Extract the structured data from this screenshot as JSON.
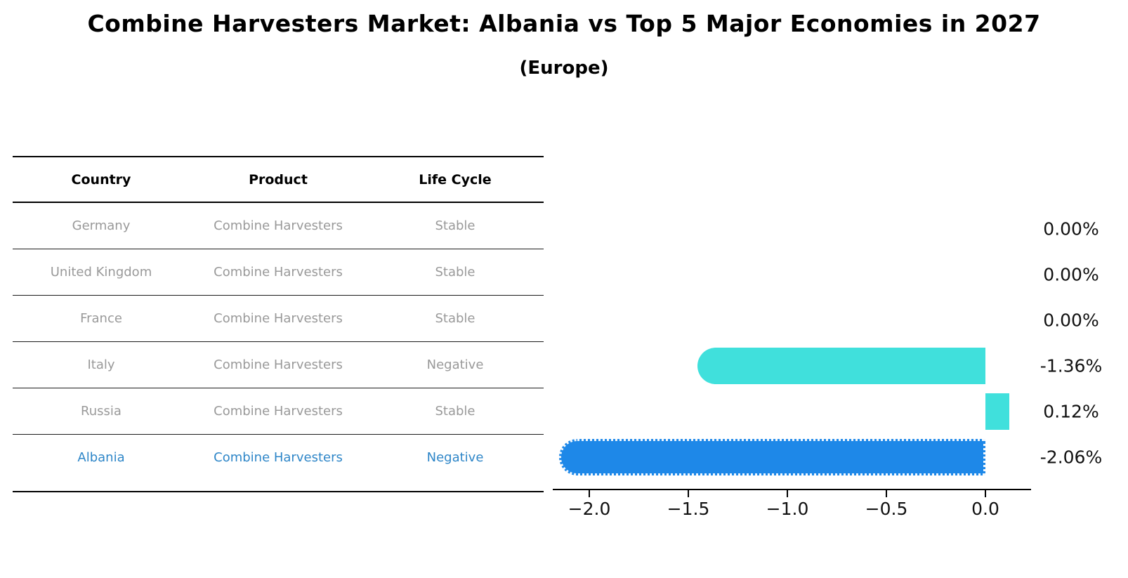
{
  "title": "Combine Harvesters Market: Albania vs Top 5 Major Economies in 2027",
  "subtitle": "(Europe)",
  "colors": {
    "default_bar": "#40E0DC",
    "highlight_bar": "#1E88E8",
    "highlight_text": "#2E86C8",
    "row_text": "#999999",
    "header_text": "#000000",
    "axis": "#000000"
  },
  "table": {
    "headers": [
      "Country",
      "Product",
      "Life Cycle"
    ],
    "rows": [
      {
        "country": "Germany",
        "product": "Combine Harvesters",
        "life_cycle": "Stable",
        "highlight": false
      },
      {
        "country": "United Kingdom",
        "product": "Combine Harvesters",
        "life_cycle": "Stable",
        "highlight": false
      },
      {
        "country": "France",
        "product": "Combine Harvesters",
        "life_cycle": "Stable",
        "highlight": false
      },
      {
        "country": "Italy",
        "product": "Combine Harvesters",
        "life_cycle": "Negative",
        "highlight": false
      },
      {
        "country": "Russia",
        "product": "Combine Harvesters",
        "life_cycle": "Stable",
        "highlight": false
      },
      {
        "country": "Albania",
        "product": "Combine Harvesters",
        "life_cycle": "Negative",
        "highlight": true
      }
    ]
  },
  "chart_data": {
    "type": "bar",
    "orientation": "horizontal",
    "title": "Combine Harvesters Market: Albania vs Top 5 Major Economies in 2027",
    "subtitle": "(Europe)",
    "categories": [
      "Germany",
      "United Kingdom",
      "France",
      "Italy",
      "Russia",
      "Albania"
    ],
    "values": [
      0.0,
      0.0,
      0.0,
      -1.36,
      0.12,
      -2.06
    ],
    "value_labels": [
      "0.00%",
      "0.00%",
      "0.00%",
      "-1.36%",
      "0.12%",
      "-2.06%"
    ],
    "highlight_category": "Albania",
    "xlabel": "",
    "ylabel": "",
    "xlim": [
      -2.18,
      0.23
    ],
    "grid": false,
    "legend": "none",
    "x_ticks": [
      {
        "label": "−2.0",
        "value": -2.0
      },
      {
        "label": "−1.5",
        "value": -1.5
      },
      {
        "label": "−1.0",
        "value": -1.0
      },
      {
        "label": "−0.5",
        "value": -0.5
      },
      {
        "label": "0.0",
        "value": 0.0
      }
    ]
  }
}
